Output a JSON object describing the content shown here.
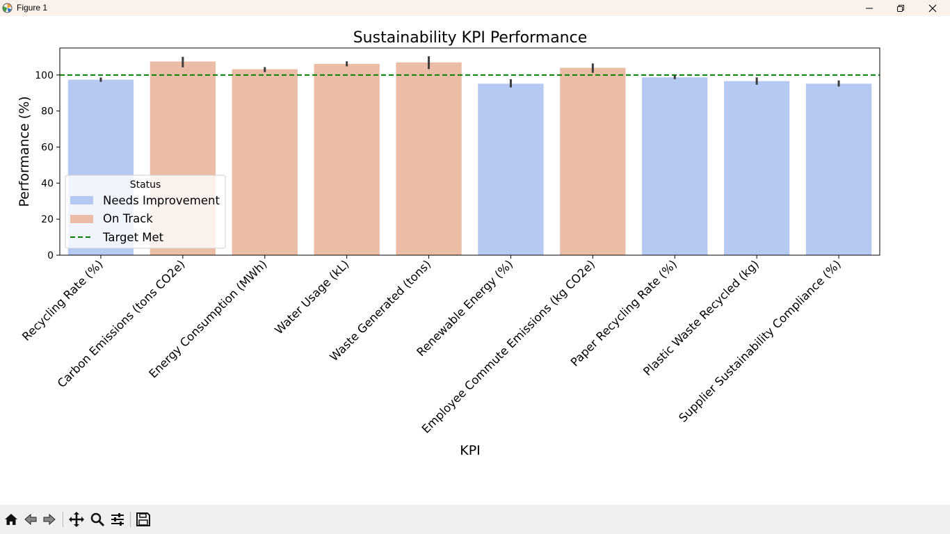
{
  "window": {
    "title": "Figure 1"
  },
  "toolbar": {
    "buttons": [
      {
        "name": "home-icon",
        "label": "Home"
      },
      {
        "name": "back-icon",
        "label": "Back"
      },
      {
        "name": "forward-icon",
        "label": "Forward"
      },
      {
        "name": "pan-icon",
        "label": "Pan"
      },
      {
        "name": "zoom-icon",
        "label": "Zoom"
      },
      {
        "name": "configure-icon",
        "label": "Configure subplots"
      },
      {
        "name": "save-icon",
        "label": "Save"
      }
    ]
  },
  "chart_data": {
    "type": "bar",
    "title": "Sustainability KPI Performance",
    "xlabel": "KPI",
    "ylabel": "Performance (%)",
    "ylim": [
      0,
      115
    ],
    "yticks": [
      0,
      20,
      40,
      60,
      80,
      100
    ],
    "grid": false,
    "categories": [
      "Recycling Rate (%)",
      "Carbon Emissions (tons CO2e)",
      "Energy Consumption (MWh)",
      "Water Usage (kL)",
      "Waste Generated (tons)",
      "Renewable Energy (%)",
      "Employee Commute Emissions (kg CO2e)",
      "Paper Recycling Rate (%)",
      "Plastic Waste Recycled (kg)",
      "Supplier Sustainability Compliance (%)"
    ],
    "values": [
      97.4,
      107.5,
      103.2,
      106.2,
      107.0,
      95.2,
      104.0,
      98.7,
      96.6,
      95.2
    ],
    "error_low": [
      96.2,
      104.3,
      101.6,
      104.8,
      103.3,
      93.1,
      101.2,
      97.7,
      94.6,
      93.6
    ],
    "error_high": [
      98.6,
      110.1,
      104.4,
      107.6,
      110.4,
      97.7,
      106.4,
      99.8,
      98.7,
      97.0
    ],
    "status": [
      "Needs Improvement",
      "On Track",
      "On Track",
      "On Track",
      "On Track",
      "Needs Improvement",
      "On Track",
      "Needs Improvement",
      "Needs Improvement",
      "Needs Improvement"
    ],
    "target": 100,
    "legend": {
      "title": "Status",
      "placement": "center-left",
      "entries": [
        {
          "label": "Needs Improvement",
          "kind": "patch",
          "color": "#b5c9f3"
        },
        {
          "label": "On Track",
          "kind": "patch",
          "color": "#ebbca6"
        },
        {
          "label": "Target Met",
          "kind": "dashed-line",
          "color": "#008000"
        }
      ]
    },
    "colors": {
      "Needs Improvement": "#b5c9f3",
      "On Track": "#ebbca6",
      "target": "#008000",
      "errorbar": "#3d3d3d"
    }
  }
}
